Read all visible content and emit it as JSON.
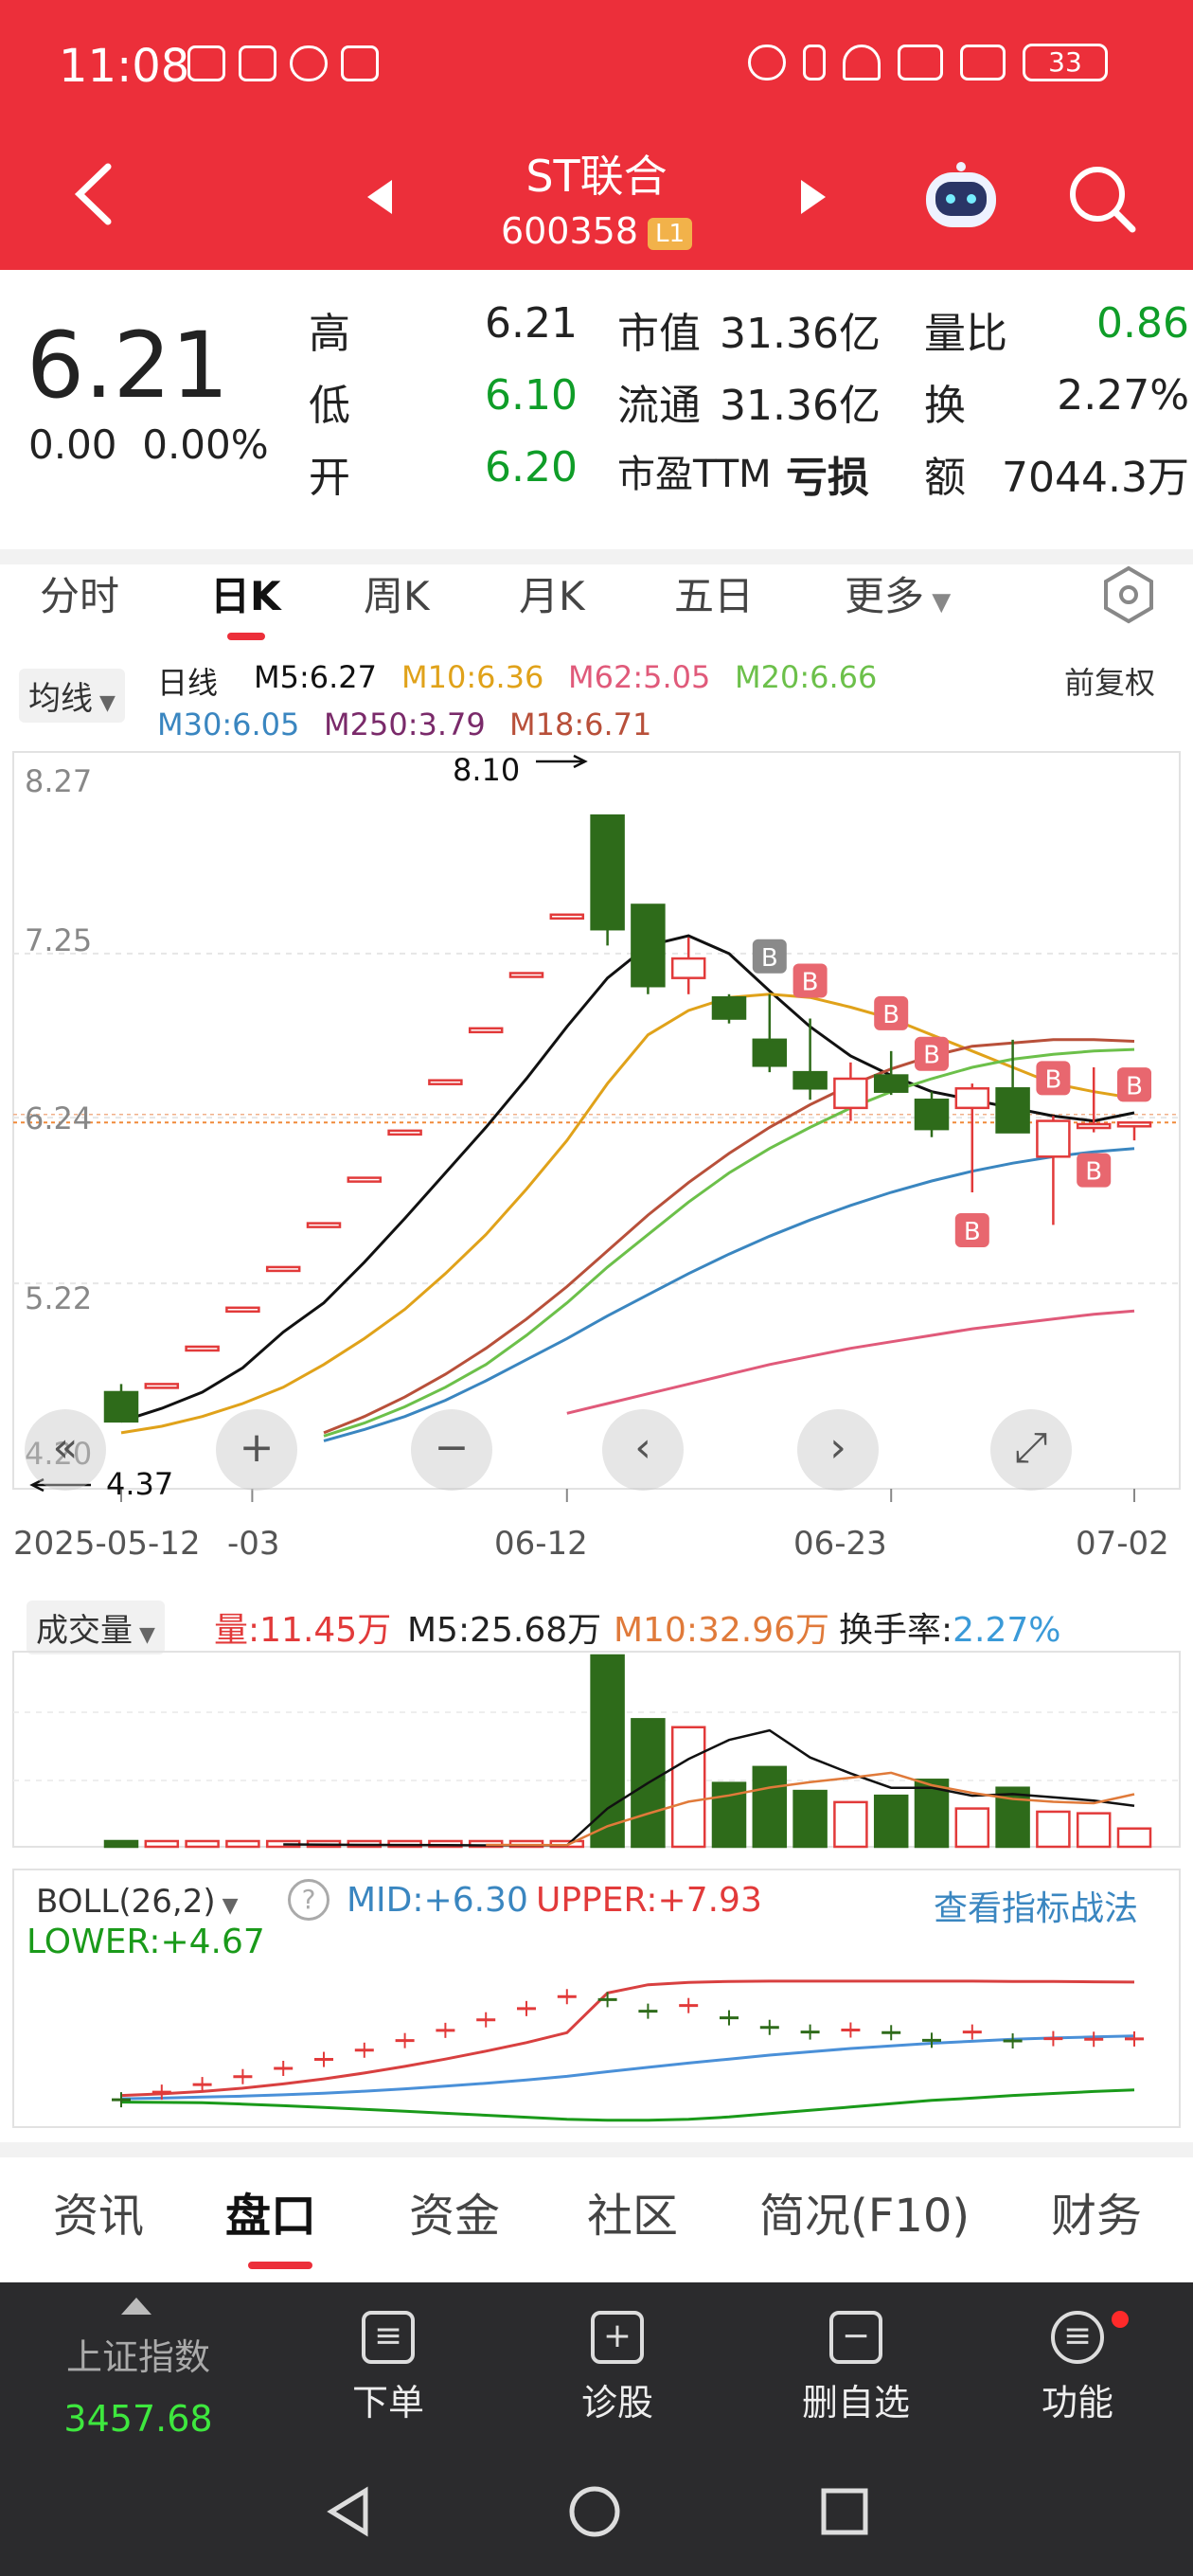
{
  "status": {
    "time": "11:08",
    "battery": "33"
  },
  "nav": {
    "title": "ST联合",
    "code": "600358",
    "level": "L1"
  },
  "quote": {
    "price": "6.21",
    "change": "0.00",
    "change_pct": "0.00%",
    "high_label": "高",
    "high": "6.21",
    "low_label": "低",
    "low": "6.10",
    "open_label": "开",
    "open": "6.20",
    "mktcap_label": "市值",
    "mktcap": "31.36亿",
    "float_label": "流通",
    "float": "31.36亿",
    "pe_label": "市盈TTM",
    "pe": "亏损",
    "vr_label": "量比",
    "vr": "0.86",
    "turn_label": "换",
    "turn": "2.27%",
    "amt_label": "额",
    "amt": "7044.3万"
  },
  "ktabs": [
    "分时",
    "日K",
    "周K",
    "月K",
    "五日",
    "更多"
  ],
  "ma_legend": {
    "btn": "均线",
    "line_type": "日线",
    "m5": "M5:6.27",
    "m10": "M10:6.36",
    "m62": "M62:5.05",
    "m20": "M20:6.66",
    "m30": "M30:6.05",
    "m250": "M250:3.79",
    "m18": "M18:6.71",
    "adjust": "前复权"
  },
  "colors": {
    "m5": "#111111",
    "m10": "#e0a21a",
    "m62": "#e05a7a",
    "m20": "#6cc04a",
    "m30": "#3a86c0",
    "m250": "#7a2a6a",
    "m18": "#b8503a",
    "up": "#e23a3a",
    "down": "#2e6b1a"
  },
  "yticks": [
    "8.27",
    "7.25",
    "6.24",
    "5.22",
    "4.20"
  ],
  "high_marker": "8.10",
  "low_marker": "4.37",
  "xticks": [
    "2025-05-12",
    "-03",
    "06-12",
    "06-23",
    "07-02"
  ],
  "vol_legend": {
    "btn": "成交量",
    "vol": "量:11.45万",
    "m5": "M5:25.68万",
    "m10": "M10:32.96万",
    "turnover_label": "换手率:",
    "turnover": "2.27%"
  },
  "boll_legend": {
    "btn": "BOLL(26,2)",
    "mid": "MID:+6.30",
    "upper": "UPPER:+7.93",
    "lower": "LOWER:+4.67",
    "link": "查看指标战法"
  },
  "btabs": [
    "资讯",
    "盘口",
    "资金",
    "社区",
    "简况(F10)",
    "财务"
  ],
  "dock": {
    "index_name": "上证指数",
    "index_value": "3457.68",
    "items": [
      "下单",
      "诊股",
      "删自选",
      "功能"
    ]
  },
  "chart_data": [
    {
      "type": "candlestick",
      "title": "",
      "y_axis_ticks": [
        8.27,
        7.25,
        6.24,
        5.22,
        4.2
      ],
      "x_tick_labels": [
        "2025-05-12",
        "-03",
        "06-12",
        "06-23",
        "07-02"
      ],
      "candles": [
        {
          "o": 4.55,
          "h": 4.6,
          "l": 4.37,
          "c": 4.37
        },
        {
          "o": 4.6,
          "h": 4.6,
          "l": 4.6,
          "c": 4.6
        },
        {
          "o": 4.83,
          "h": 4.83,
          "l": 4.83,
          "c": 4.83
        },
        {
          "o": 5.07,
          "h": 5.07,
          "l": 5.07,
          "c": 5.07
        },
        {
          "o": 5.32,
          "h": 5.32,
          "l": 5.32,
          "c": 5.32
        },
        {
          "o": 5.59,
          "h": 5.59,
          "l": 5.59,
          "c": 5.59
        },
        {
          "o": 5.87,
          "h": 5.87,
          "l": 5.87,
          "c": 5.87
        },
        {
          "o": 6.16,
          "h": 6.16,
          "l": 6.16,
          "c": 6.16
        },
        {
          "o": 6.47,
          "h": 6.47,
          "l": 6.47,
          "c": 6.47
        },
        {
          "o": 6.79,
          "h": 6.79,
          "l": 6.79,
          "c": 6.79
        },
        {
          "o": 7.13,
          "h": 7.13,
          "l": 7.13,
          "c": 7.13
        },
        {
          "o": 7.49,
          "h": 7.49,
          "l": 7.49,
          "c": 7.49
        },
        {
          "o": 8.1,
          "h": 8.1,
          "l": 7.3,
          "c": 7.4
        },
        {
          "o": 7.55,
          "h": 7.55,
          "l": 7.0,
          "c": 7.05
        },
        {
          "o": 7.1,
          "h": 7.35,
          "l": 7.0,
          "c": 7.22
        },
        {
          "o": 6.98,
          "h": 7.0,
          "l": 6.82,
          "c": 6.85
        },
        {
          "o": 6.72,
          "h": 7.0,
          "l": 6.52,
          "c": 6.56
        },
        {
          "o": 6.52,
          "h": 6.85,
          "l": 6.35,
          "c": 6.42
        },
        {
          "o": 6.3,
          "h": 6.58,
          "l": 6.22,
          "c": 6.48
        },
        {
          "o": 6.5,
          "h": 6.65,
          "l": 6.38,
          "c": 6.4
        },
        {
          "o": 6.35,
          "h": 6.4,
          "l": 6.12,
          "c": 6.17
        },
        {
          "o": 6.3,
          "h": 6.45,
          "l": 5.78,
          "c": 6.42
        },
        {
          "o": 6.42,
          "h": 6.72,
          "l": 6.15,
          "c": 6.15
        },
        {
          "o": 6.0,
          "h": 6.25,
          "l": 5.58,
          "c": 6.22
        },
        {
          "o": 6.2,
          "h": 6.55,
          "l": 6.15,
          "c": 6.2
        },
        {
          "o": 6.2,
          "h": 6.21,
          "l": 6.1,
          "c": 6.21
        }
      ],
      "ma_series": [
        {
          "name": "M5",
          "values": [
            4.37,
            4.45,
            4.55,
            4.7,
            4.92,
            5.1,
            5.35,
            5.62,
            5.9,
            6.18,
            6.48,
            6.8,
            7.1,
            7.3,
            7.36,
            7.25,
            7.02,
            6.8,
            6.62,
            6.5,
            6.4,
            6.35,
            6.3,
            6.25,
            6.22,
            6.27
          ]
        },
        {
          "name": "M10",
          "values": [
            4.3,
            4.34,
            4.4,
            4.48,
            4.58,
            4.72,
            4.88,
            5.06,
            5.28,
            5.52,
            5.8,
            6.1,
            6.45,
            6.75,
            6.9,
            6.98,
            7.0,
            6.98,
            6.92,
            6.85,
            6.75,
            6.65,
            6.55,
            6.45,
            6.4,
            6.36
          ]
        },
        {
          "name": "M20",
          "values": [
            null,
            null,
            null,
            null,
            null,
            4.28,
            4.36,
            4.46,
            4.58,
            4.72,
            4.9,
            5.1,
            5.32,
            5.52,
            5.72,
            5.9,
            6.05,
            6.18,
            6.3,
            6.4,
            6.48,
            6.55,
            6.6,
            6.63,
            6.65,
            6.66
          ]
        },
        {
          "name": "M18",
          "values": [
            null,
            null,
            null,
            null,
            null,
            4.3,
            4.4,
            4.52,
            4.66,
            4.82,
            5.0,
            5.2,
            5.42,
            5.64,
            5.84,
            6.02,
            6.18,
            6.32,
            6.44,
            6.54,
            6.62,
            6.68,
            6.7,
            6.72,
            6.72,
            6.71
          ]
        },
        {
          "name": "M30",
          "values": [
            null,
            null,
            null,
            null,
            null,
            4.25,
            4.32,
            4.4,
            4.5,
            4.62,
            4.75,
            4.88,
            5.02,
            5.15,
            5.28,
            5.4,
            5.51,
            5.61,
            5.7,
            5.78,
            5.85,
            5.91,
            5.96,
            6.0,
            6.03,
            6.05
          ]
        },
        {
          "name": "M62",
          "values": [
            null,
            null,
            null,
            null,
            null,
            null,
            null,
            null,
            null,
            null,
            null,
            4.42,
            4.48,
            4.54,
            4.6,
            4.66,
            4.72,
            4.77,
            4.82,
            4.86,
            4.9,
            4.94,
            4.97,
            5.0,
            5.03,
            5.05
          ]
        }
      ]
    },
    {
      "type": "bar",
      "title": "成交量",
      "values": [
        2,
        1.8,
        1.5,
        1.2,
        1.1,
        1.0,
        1.0,
        0.9,
        0.9,
        0.9,
        0.9,
        0.9,
        120,
        80,
        75,
        40,
        50,
        35,
        28,
        32,
        42,
        24,
        37,
        22,
        21,
        11.45
      ],
      "ma_series": [
        {
          "name": "M5",
          "values": [
            null,
            null,
            null,
            null,
            1.5,
            1.3,
            1.2,
            1.1,
            1.0,
            0.9,
            0.9,
            0.9,
            24,
            40,
            55,
            67,
            73,
            56,
            46,
            37,
            37,
            32,
            33,
            31,
            29,
            25.68
          ]
        },
        {
          "name": "M10",
          "values": [
            null,
            null,
            null,
            null,
            null,
            null,
            null,
            null,
            null,
            1.2,
            1.1,
            1.0,
            12.9,
            20.8,
            28.3,
            32.2,
            37.1,
            40.5,
            43.3,
            46.4,
            38.6,
            33.8,
            30.0,
            28.2,
            27.3,
            32.96
          ]
        }
      ]
    },
    {
      "type": "line",
      "title": "BOLL(26,2)",
      "series": [
        {
          "name": "UPPER",
          "values": [
            4.5,
            4.55,
            4.62,
            4.72,
            4.85,
            5.0,
            5.18,
            5.38,
            5.6,
            5.84,
            6.1,
            6.4,
            7.6,
            7.85,
            7.92,
            7.95,
            7.96,
            7.96,
            7.96,
            7.96,
            7.96,
            7.96,
            7.95,
            7.95,
            7.94,
            7.93
          ]
        },
        {
          "name": "MID",
          "values": [
            4.4,
            4.42,
            4.45,
            4.48,
            4.52,
            4.57,
            4.63,
            4.7,
            4.78,
            4.87,
            4.97,
            5.08,
            5.22,
            5.35,
            5.48,
            5.6,
            5.72,
            5.82,
            5.92,
            6.0,
            6.08,
            6.14,
            6.2,
            6.24,
            6.27,
            6.3
          ]
        },
        {
          "name": "LOWER",
          "values": [
            4.3,
            4.29,
            4.28,
            4.24,
            4.19,
            4.14,
            4.08,
            4.02,
            3.96,
            3.9,
            3.84,
            3.78,
            3.75,
            3.75,
            3.78,
            3.85,
            3.95,
            4.05,
            4.15,
            4.25,
            4.35,
            4.42,
            4.5,
            4.56,
            4.62,
            4.67
          ]
        }
      ]
    }
  ]
}
